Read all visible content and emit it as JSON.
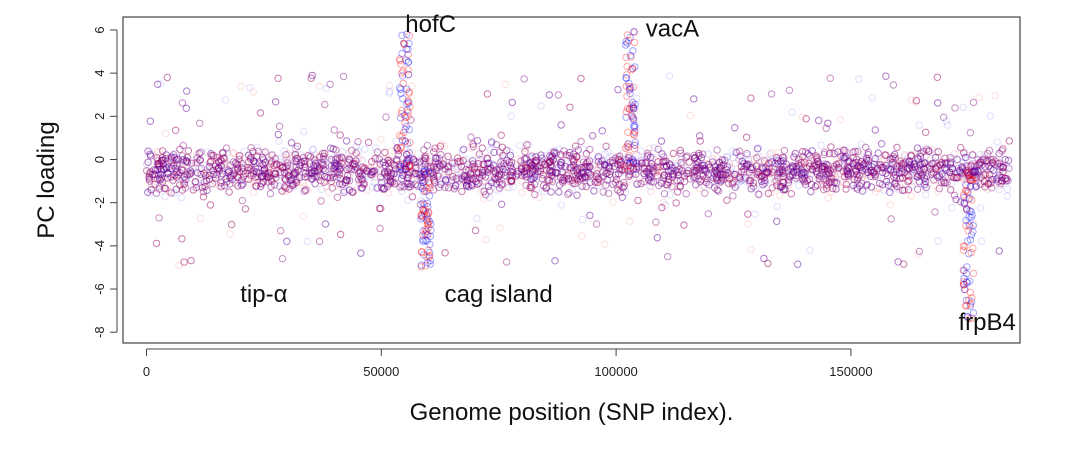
{
  "chart_data": {
    "type": "scatter",
    "title": "",
    "xlabel": "Genome position (SNP index).",
    "ylabel": "PC loading",
    "xlim": [
      -5000,
      186000
    ],
    "ylim": [
      -8.5,
      6.6
    ],
    "xticks": [
      0,
      50000,
      100000,
      150000
    ],
    "xtick_labels": [
      "0",
      "50000",
      "100000",
      "150000"
    ],
    "yticks": [
      -8,
      -6,
      -4,
      -2,
      0,
      2,
      4,
      6
    ],
    "ytick_labels": [
      "-8",
      "-6",
      "-4",
      "-2",
      "0",
      "2",
      "4",
      "6"
    ],
    "grid": false,
    "legend": "none",
    "series_colors": [
      "#ff0000",
      "#0000ff"
    ],
    "band": {
      "x_range": [
        0,
        184000
      ],
      "center": -0.5,
      "core_spread": 1.3,
      "outlier_range": [
        -4.5,
        4.5
      ]
    },
    "peaks": [
      {
        "gene": "hofC",
        "x": 55000,
        "y_max": 5.8
      },
      {
        "gene": "vacA",
        "x": 103000,
        "y_max": 6.0
      },
      {
        "gene": "cag island",
        "x": 59500,
        "y_min": -5.0
      },
      {
        "gene": "frpB4",
        "x": 175000,
        "y_min": -7.5
      }
    ],
    "annotations": [
      {
        "text": "hofC",
        "x": 60500,
        "y": 5.9
      },
      {
        "text": "vacA",
        "x": 112000,
        "y": 5.7
      },
      {
        "text": "tip-α",
        "x": 25000,
        "y": -6.6
      },
      {
        "text": "cag island",
        "x": 75000,
        "y": -6.6
      },
      {
        "text": "frpB4",
        "x": 179000,
        "y": -7.9
      }
    ]
  }
}
